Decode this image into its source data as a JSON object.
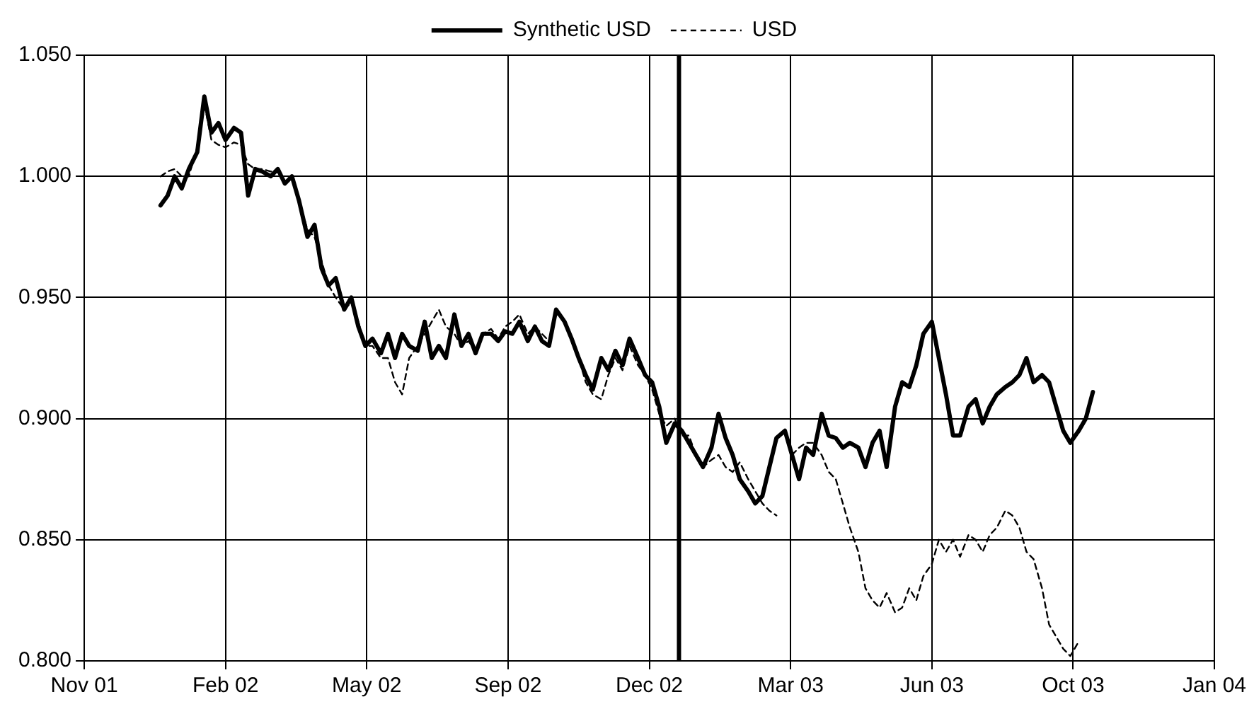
{
  "chart_data": {
    "type": "line",
    "legend": "top",
    "grid": true,
    "marker": "none",
    "xlim": [
      "2001-11-06",
      "2004-01-15"
    ],
    "xticks": [
      {
        "value": "2001-11-06",
        "label": "Nov 01"
      },
      {
        "value": "2002-02-14",
        "label": "Feb 02"
      },
      {
        "value": "2002-05-25",
        "label": "May 02"
      },
      {
        "value": "2002-09-02",
        "label": "Sep 02"
      },
      {
        "value": "2002-12-11",
        "label": "Dec 02"
      },
      {
        "value": "2003-03-21",
        "label": "Mar 03"
      },
      {
        "value": "2003-06-29",
        "label": "Jun 03"
      },
      {
        "value": "2003-10-07",
        "label": "Oct 03"
      },
      {
        "value": "2004-01-15",
        "label": "Jan 04"
      }
    ],
    "ylim": [
      0.8,
      1.05
    ],
    "yticks": [
      {
        "value": 0.8,
        "label": "0.800"
      },
      {
        "value": 0.85,
        "label": "0.850"
      },
      {
        "value": 0.9,
        "label": "0.900"
      },
      {
        "value": 0.95,
        "label": "0.950"
      },
      {
        "value": 1.0,
        "label": "1.000"
      },
      {
        "value": 1.05,
        "label": "1.050"
      }
    ],
    "ref_lines": [
      {
        "axis": "x",
        "value": "2003-01-01",
        "color": "#000000"
      }
    ],
    "x": [
      "2001-12-30",
      "2002-01-04",
      "2002-01-09",
      "2002-01-14",
      "2002-01-19",
      "2002-01-25",
      "2002-01-30",
      "2002-02-04",
      "2002-02-09",
      "2002-02-14",
      "2002-02-20",
      "2002-02-25",
      "2002-03-02",
      "2002-03-07",
      "2002-03-12",
      "2002-03-18",
      "2002-03-23",
      "2002-03-28",
      "2002-04-02",
      "2002-04-07",
      "2002-04-13",
      "2002-04-18",
      "2002-04-23",
      "2002-04-28",
      "2002-05-03",
      "2002-05-09",
      "2002-05-14",
      "2002-05-19",
      "2002-05-24",
      "2002-05-29",
      "2002-06-04",
      "2002-06-09",
      "2002-06-14",
      "2002-06-19",
      "2002-06-24",
      "2002-06-30",
      "2002-07-05",
      "2002-07-10",
      "2002-07-15",
      "2002-07-20",
      "2002-07-26",
      "2002-07-31",
      "2002-08-05",
      "2002-08-10",
      "2002-08-15",
      "2002-08-21",
      "2002-08-26",
      "2002-08-31",
      "2002-09-05",
      "2002-09-10",
      "2002-09-16",
      "2002-09-21",
      "2002-09-26",
      "2002-10-01",
      "2002-10-06",
      "2002-10-12",
      "2002-10-17",
      "2002-10-22",
      "2002-10-27",
      "2002-11-01",
      "2002-11-07",
      "2002-11-12",
      "2002-11-17",
      "2002-11-22",
      "2002-11-27",
      "2002-12-03",
      "2002-12-08",
      "2002-12-13",
      "2002-12-18",
      "2002-12-23",
      "2002-12-29",
      "2003-01-03",
      "2003-01-08",
      "2003-01-13",
      "2003-01-18",
      "2003-01-24",
      "2003-01-29",
      "2003-02-03",
      "2003-02-08",
      "2003-02-13",
      "2003-02-19",
      "2003-02-24",
      "2003-03-01",
      "2003-03-06",
      "2003-03-11",
      "2003-03-17",
      "2003-03-22",
      "2003-03-27",
      "2003-04-01",
      "2003-04-06",
      "2003-04-12",
      "2003-04-17",
      "2003-04-22",
      "2003-04-27",
      "2003-05-02",
      "2003-05-08",
      "2003-05-13",
      "2003-05-18",
      "2003-05-23",
      "2003-05-28",
      "2003-06-03",
      "2003-06-08",
      "2003-06-13",
      "2003-06-18",
      "2003-06-23",
      "2003-06-29",
      "2003-07-04",
      "2003-07-09",
      "2003-07-14",
      "2003-07-19",
      "2003-07-25",
      "2003-07-30",
      "2003-08-04",
      "2003-08-09",
      "2003-08-14",
      "2003-08-20",
      "2003-08-25",
      "2003-08-30",
      "2003-09-04",
      "2003-09-09",
      "2003-09-15",
      "2003-09-20",
      "2003-09-25",
      "2003-09-30",
      "2003-10-05",
      "2003-10-11",
      "2003-10-16",
      "2003-10-21"
    ],
    "series": [
      {
        "name": "Synthetic USD",
        "color": "#000000",
        "line_style": "solid",
        "values": [
          0.988,
          0.992,
          1.0,
          0.995,
          1.003,
          1.01,
          1.033,
          1.018,
          1.022,
          1.015,
          1.02,
          1.018,
          0.992,
          1.003,
          1.002,
          1.0,
          1.003,
          0.997,
          1.0,
          0.99,
          0.975,
          0.98,
          0.962,
          0.955,
          0.958,
          0.945,
          0.95,
          0.938,
          0.93,
          0.933,
          0.927,
          0.935,
          0.925,
          0.935,
          0.93,
          0.928,
          0.94,
          0.925,
          0.93,
          0.925,
          0.943,
          0.93,
          0.935,
          0.927,
          0.935,
          0.935,
          0.932,
          0.936,
          0.935,
          0.94,
          0.932,
          0.938,
          0.932,
          0.93,
          0.945,
          0.94,
          0.933,
          0.925,
          0.918,
          0.912,
          0.925,
          0.92,
          0.928,
          0.922,
          0.933,
          0.925,
          0.918,
          0.915,
          0.905,
          0.89,
          0.898,
          0.895,
          0.89,
          0.885,
          0.88,
          0.888,
          0.902,
          0.892,
          0.885,
          0.875,
          0.87,
          0.865,
          0.868,
          0.88,
          0.892,
          0.895,
          0.885,
          0.875,
          0.888,
          0.885,
          0.902,
          0.893,
          0.892,
          0.888,
          0.89,
          0.888,
          0.88,
          0.89,
          0.895,
          0.88,
          0.905,
          0.915,
          0.913,
          0.922,
          0.935,
          0.94,
          0.925,
          0.91,
          0.893,
          0.893,
          0.905,
          0.908,
          0.898,
          0.905,
          0.91,
          0.913,
          0.915,
          0.918,
          0.925,
          0.915,
          0.918,
          0.915,
          0.905,
          0.895,
          0.89,
          0.895,
          0.9,
          0.911
        ]
      },
      {
        "name": "USD",
        "color": "#000000",
        "line_style": "dashed",
        "values": [
          1.0,
          1.002,
          1.003,
          1.0,
          1.0,
          1.012,
          1.03,
          1.015,
          1.013,
          1.012,
          1.014,
          1.013,
          1.005,
          1.003,
          1.003,
          1.002,
          1.002,
          0.998,
          1.0,
          0.99,
          0.978,
          0.975,
          0.965,
          0.955,
          0.95,
          0.945,
          0.948,
          0.94,
          0.93,
          0.93,
          0.925,
          0.925,
          0.915,
          0.91,
          0.925,
          0.93,
          0.935,
          0.94,
          0.945,
          0.938,
          0.935,
          0.93,
          0.932,
          0.928,
          0.935,
          0.937,
          0.933,
          0.938,
          0.94,
          0.943,
          0.935,
          0.938,
          0.935,
          0.932,
          0.945,
          0.94,
          0.932,
          0.925,
          0.915,
          0.91,
          0.908,
          0.918,
          0.925,
          0.92,
          0.93,
          0.922,
          0.918,
          0.912,
          0.902,
          0.897,
          0.9,
          0.893,
          0.893,
          0.885,
          0.88,
          0.883,
          0.885,
          0.88,
          0.878,
          0.882,
          0.875,
          0.87,
          0.865,
          0.862,
          0.86,
          null,
          0.885,
          0.888,
          0.89,
          0.89,
          0.885,
          0.878,
          0.875,
          0.865,
          0.855,
          0.845,
          0.83,
          0.825,
          0.822,
          0.828,
          0.82,
          0.822,
          0.83,
          0.825,
          0.835,
          0.84,
          0.85,
          0.845,
          0.85,
          0.843,
          0.852,
          0.85,
          0.845,
          0.852,
          0.855,
          0.862,
          0.86,
          0.855,
          0.845,
          0.842,
          0.83,
          0.815,
          0.81,
          0.805,
          0.802,
          0.808,
          null,
          null
        ]
      }
    ]
  }
}
